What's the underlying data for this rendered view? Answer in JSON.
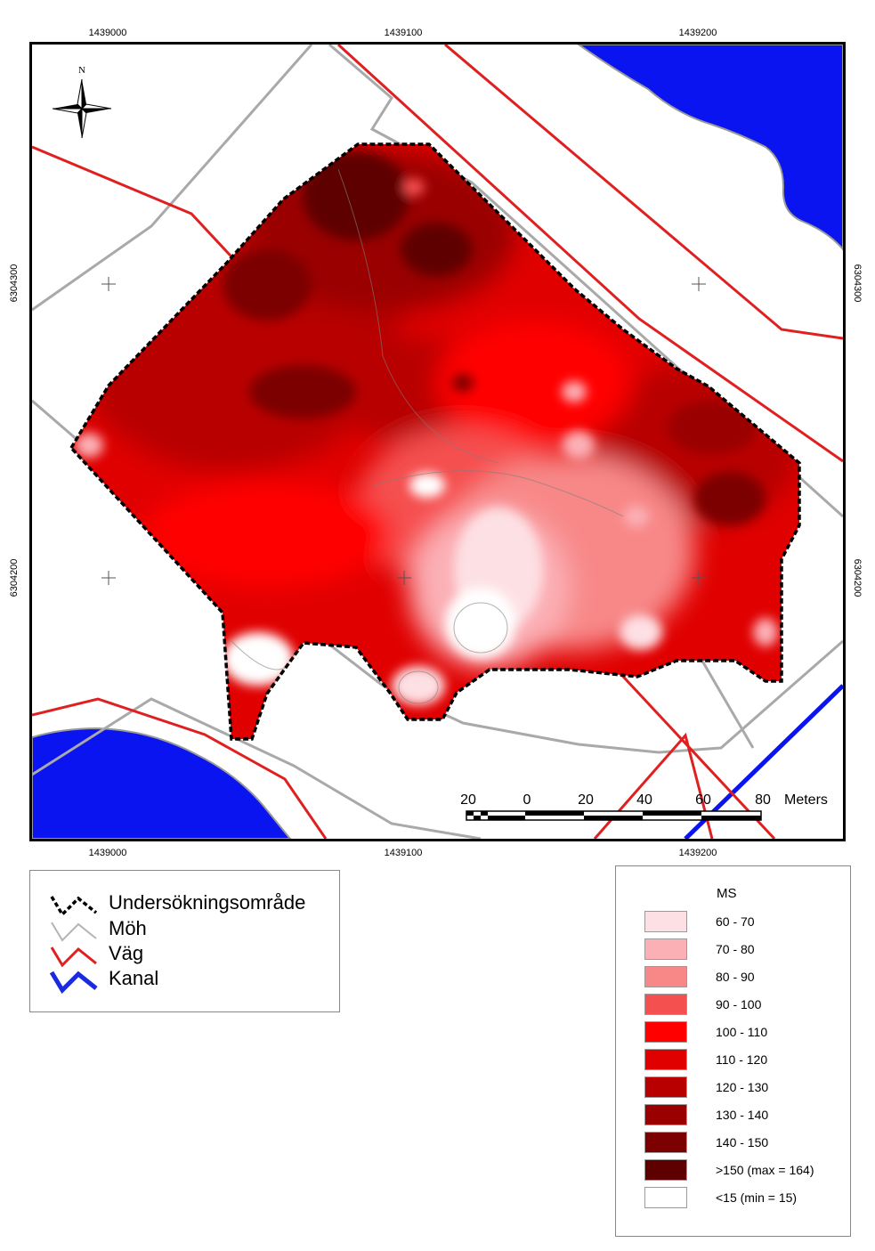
{
  "grid_labels": {
    "top": [
      "1439000",
      "1439100",
      "1439200"
    ],
    "bottom": [
      "1439000",
      "1439100",
      "1439200"
    ],
    "left": [
      "6304300",
      "6304200"
    ],
    "right": [
      "6304300",
      "6304200"
    ]
  },
  "north_arrow": {
    "label": "N",
    "icon": "compass-rose-icon"
  },
  "scale_bar": {
    "labels": [
      "20",
      "0",
      "20",
      "40",
      "60",
      "80"
    ],
    "unit": "Meters"
  },
  "line_legend": {
    "items": [
      {
        "label": "Undersökningsområde",
        "icon": "dashed-black-line-icon",
        "color": "#000000"
      },
      {
        "label": "Möh",
        "icon": "grey-line-icon",
        "color": "#b4b4b4"
      },
      {
        "label": "Väg",
        "icon": "red-line-icon",
        "color": "#e02020"
      },
      {
        "label": "Kanal",
        "icon": "blue-line-icon",
        "color": "#1a2ae0"
      }
    ]
  },
  "ms_legend": {
    "title": "MS",
    "classes": [
      {
        "label": "60 - 70",
        "color": "#fde0e4"
      },
      {
        "label": "70 - 80",
        "color": "#fbb0b6"
      },
      {
        "label": "80 - 90",
        "color": "#f88888"
      },
      {
        "label": "90 - 100",
        "color": "#f55050"
      },
      {
        "label": "100 - 110",
        "color": "#ff0000"
      },
      {
        "label": "110 - 120",
        "color": "#e00000"
      },
      {
        "label": "120 - 130",
        "color": "#b80000"
      },
      {
        "label": "130 - 140",
        "color": "#9a0000"
      },
      {
        "label": ">150 (max = 164)",
        "color": "#5e0000"
      },
      {
        "label": "<15 (min = 15)",
        "color": "#ffffff"
      }
    ],
    "extra_class": {
      "label": "140 - 150",
      "color": "#7c0000"
    }
  }
}
